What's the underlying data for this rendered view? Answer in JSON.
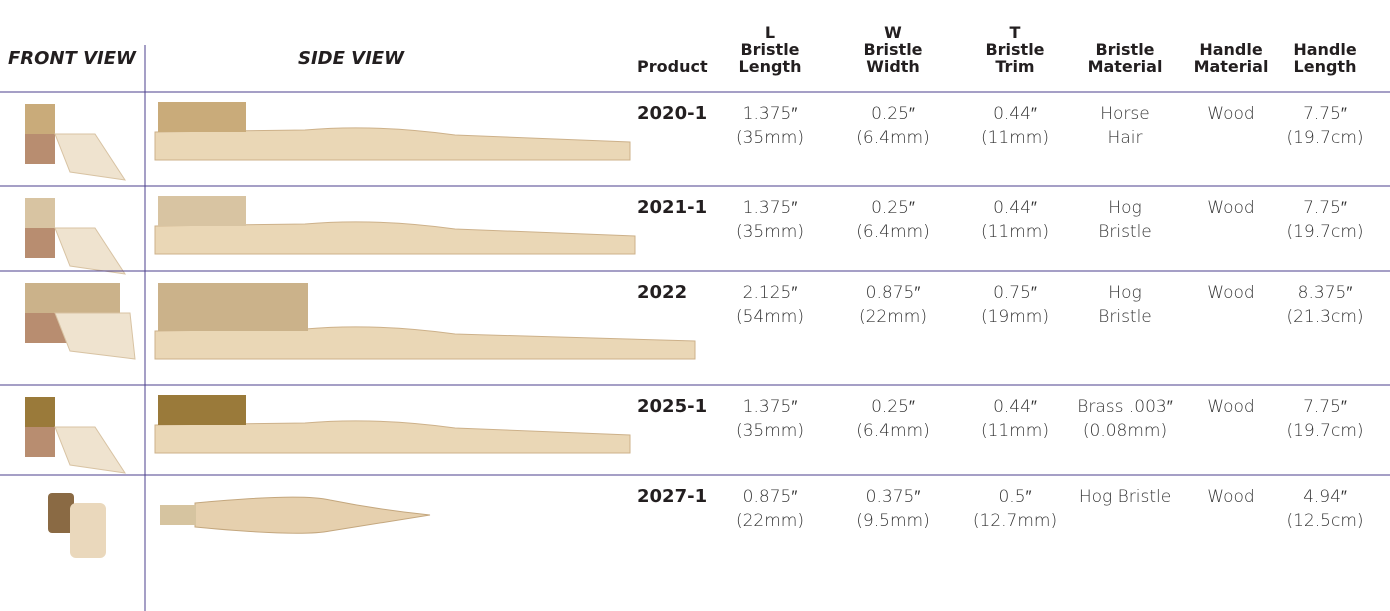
{
  "header": {
    "front_view": "FRONT VIEW",
    "side_view": "SIDE VIEW",
    "product": "Product",
    "columns": [
      [
        "L",
        "Bristle",
        "Length"
      ],
      [
        "W",
        "Bristle",
        "Width"
      ],
      [
        "T",
        "Bristle",
        "Trim"
      ],
      [
        "Bristle",
        "Material"
      ],
      [
        "Handle",
        "Material"
      ],
      [
        "Handle",
        "Length"
      ]
    ]
  },
  "table": {
    "rows": [
      {
        "product": "2020-1",
        "cells": [
          [
            "1.375″",
            "(35mm)"
          ],
          [
            "0.25″",
            "(6.4mm)"
          ],
          [
            "0.44″",
            "(11mm)"
          ],
          [
            "Horse",
            "Hair"
          ],
          [
            "Wood"
          ],
          [
            "7.75″",
            "(19.7cm)"
          ]
        ]
      },
      {
        "product": "2021-1",
        "cells": [
          [
            "1.375″",
            "(35mm)"
          ],
          [
            "0.25″",
            "(6.4mm)"
          ],
          [
            "0.44″",
            "(11mm)"
          ],
          [
            "Hog",
            "Bristle"
          ],
          [
            "Wood"
          ],
          [
            "7.75″",
            "(19.7cm)"
          ]
        ]
      },
      {
        "product": "2022",
        "cells": [
          [
            "2.125″",
            "(54mm)"
          ],
          [
            "0.875″",
            "(22mm)"
          ],
          [
            "0.75″",
            "(19mm)"
          ],
          [
            "Hog",
            "Bristle"
          ],
          [
            "Wood"
          ],
          [
            "8.375″",
            "(21.3cm)"
          ]
        ]
      },
      {
        "product": "2025-1",
        "cells": [
          [
            "1.375″",
            "(35mm)"
          ],
          [
            "0.25″",
            "(6.4mm)"
          ],
          [
            "0.44″",
            "(11mm)"
          ],
          [
            "Brass .003″",
            "(0.08mm)"
          ],
          [
            "Wood"
          ],
          [
            "7.75″",
            "(19.7cm)"
          ]
        ]
      },
      {
        "product": "2027-1",
        "cells": [
          [
            "0.875″",
            "(22mm)"
          ],
          [
            "0.375″",
            "(9.5mm)"
          ],
          [
            "0.5″",
            "(12.7mm)"
          ],
          [
            "Hog Bristle"
          ],
          [
            "Wood"
          ],
          [
            "4.94″",
            "(12.5cm)"
          ]
        ]
      }
    ]
  }
}
